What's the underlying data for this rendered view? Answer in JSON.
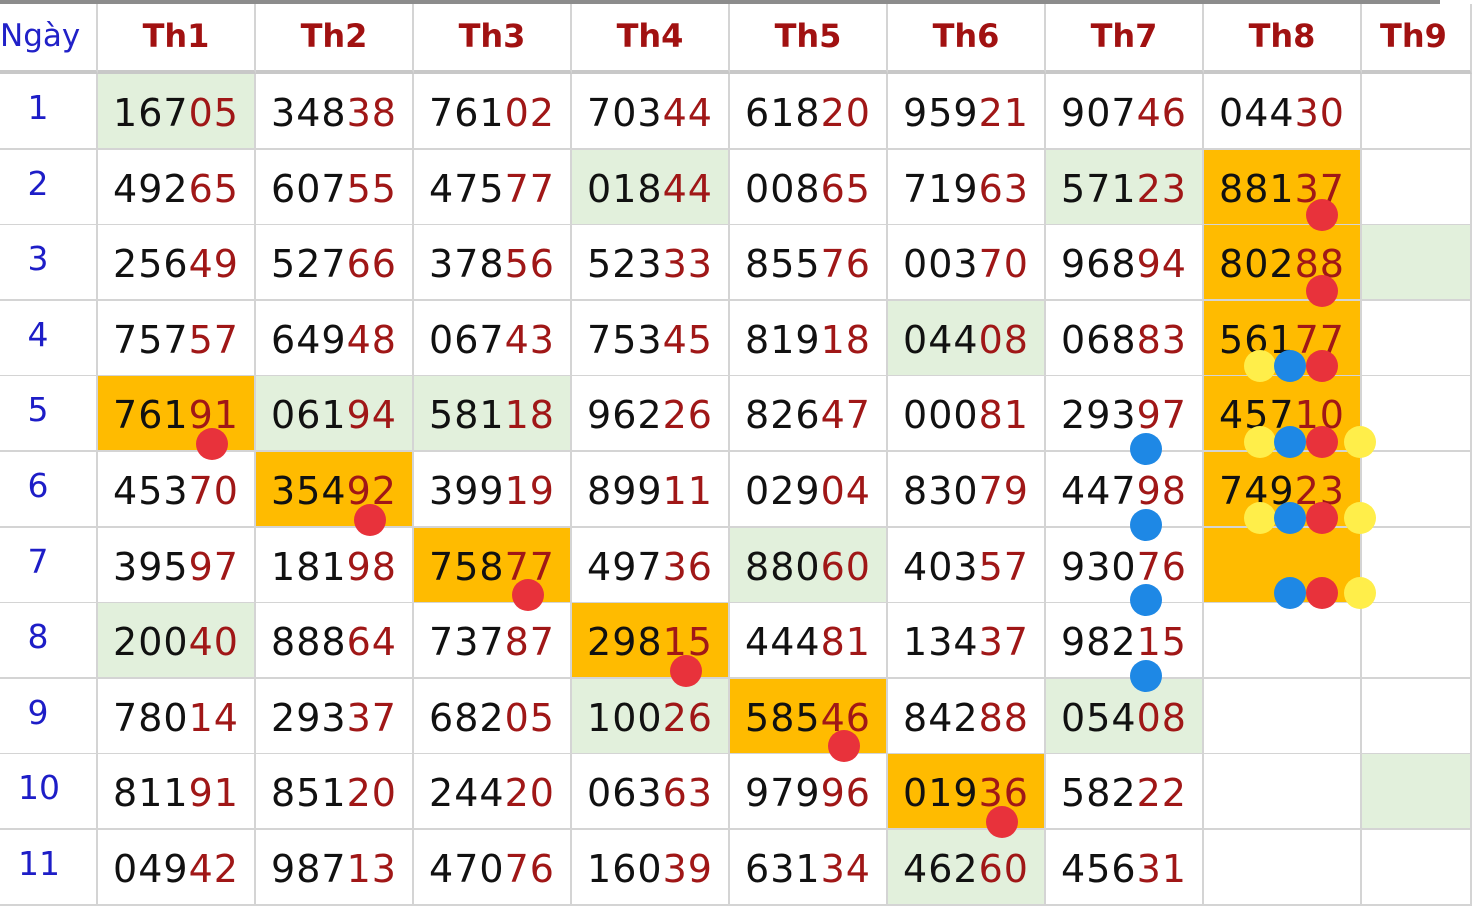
{
  "header": {
    "day_label": "Ngày",
    "months": [
      "Th1",
      "Th2",
      "Th3",
      "Th4",
      "Th5",
      "Th6",
      "Th7",
      "Th8",
      "Th9"
    ]
  },
  "rows": [
    {
      "day": "1",
      "cells": [
        {
          "prefix": "167",
          "suffix": "05",
          "bg": "green"
        },
        {
          "prefix": "348",
          "suffix": "38",
          "bg": "white"
        },
        {
          "prefix": "761",
          "suffix": "02",
          "bg": "white"
        },
        {
          "prefix": "703",
          "suffix": "44",
          "bg": "white"
        },
        {
          "prefix": "618",
          "suffix": "20",
          "bg": "white"
        },
        {
          "prefix": "959",
          "suffix": "21",
          "bg": "white"
        },
        {
          "prefix": "907",
          "suffix": "46",
          "bg": "white"
        },
        {
          "prefix": "044",
          "suffix": "30",
          "bg": "white"
        },
        {
          "prefix": "",
          "suffix": "",
          "bg": "white"
        }
      ]
    },
    {
      "day": "2",
      "cells": [
        {
          "prefix": "492",
          "suffix": "65",
          "bg": "white"
        },
        {
          "prefix": "607",
          "suffix": "55",
          "bg": "white"
        },
        {
          "prefix": "475",
          "suffix": "77",
          "bg": "white"
        },
        {
          "prefix": "018",
          "suffix": "44",
          "bg": "green"
        },
        {
          "prefix": "008",
          "suffix": "65",
          "bg": "white"
        },
        {
          "prefix": "719",
          "suffix": "63",
          "bg": "white"
        },
        {
          "prefix": "571",
          "suffix": "23",
          "bg": "green"
        },
        {
          "prefix": "881",
          "suffix": "37",
          "bg": "orange"
        },
        {
          "prefix": "",
          "suffix": "",
          "bg": "white"
        }
      ]
    },
    {
      "day": "3",
      "cells": [
        {
          "prefix": "256",
          "suffix": "49",
          "bg": "white"
        },
        {
          "prefix": "527",
          "suffix": "66",
          "bg": "white"
        },
        {
          "prefix": "378",
          "suffix": "56",
          "bg": "white"
        },
        {
          "prefix": "523",
          "suffix": "33",
          "bg": "white"
        },
        {
          "prefix": "855",
          "suffix": "76",
          "bg": "white"
        },
        {
          "prefix": "003",
          "suffix": "70",
          "bg": "white"
        },
        {
          "prefix": "968",
          "suffix": "94",
          "bg": "white"
        },
        {
          "prefix": "802",
          "suffix": "88",
          "bg": "orange"
        },
        {
          "prefix": "",
          "suffix": "",
          "bg": "green"
        }
      ]
    },
    {
      "day": "4",
      "cells": [
        {
          "prefix": "757",
          "suffix": "57",
          "bg": "white"
        },
        {
          "prefix": "649",
          "suffix": "48",
          "bg": "white"
        },
        {
          "prefix": "067",
          "suffix": "43",
          "bg": "white"
        },
        {
          "prefix": "753",
          "suffix": "45",
          "bg": "white"
        },
        {
          "prefix": "819",
          "suffix": "18",
          "bg": "white"
        },
        {
          "prefix": "044",
          "suffix": "08",
          "bg": "green"
        },
        {
          "prefix": "068",
          "suffix": "83",
          "bg": "white"
        },
        {
          "prefix": "561",
          "suffix": "77",
          "bg": "orange"
        },
        {
          "prefix": "",
          "suffix": "",
          "bg": "white"
        }
      ]
    },
    {
      "day": "5",
      "cells": [
        {
          "prefix": "761",
          "suffix": "91",
          "bg": "orange"
        },
        {
          "prefix": "061",
          "suffix": "94",
          "bg": "green"
        },
        {
          "prefix": "581",
          "suffix": "18",
          "bg": "green"
        },
        {
          "prefix": "962",
          "suffix": "26",
          "bg": "white"
        },
        {
          "prefix": "826",
          "suffix": "47",
          "bg": "white"
        },
        {
          "prefix": "000",
          "suffix": "81",
          "bg": "white"
        },
        {
          "prefix": "293",
          "suffix": "97",
          "bg": "white"
        },
        {
          "prefix": "457",
          "suffix": "10",
          "bg": "orange"
        },
        {
          "prefix": "",
          "suffix": "",
          "bg": "white"
        }
      ]
    },
    {
      "day": "6",
      "cells": [
        {
          "prefix": "453",
          "suffix": "70",
          "bg": "white"
        },
        {
          "prefix": "354",
          "suffix": "92",
          "bg": "orange"
        },
        {
          "prefix": "399",
          "suffix": "19",
          "bg": "white"
        },
        {
          "prefix": "899",
          "suffix": "11",
          "bg": "white"
        },
        {
          "prefix": "029",
          "suffix": "04",
          "bg": "white"
        },
        {
          "prefix": "830",
          "suffix": "79",
          "bg": "white"
        },
        {
          "prefix": "447",
          "suffix": "98",
          "bg": "white"
        },
        {
          "prefix": "749",
          "suffix": "23",
          "bg": "orange"
        },
        {
          "prefix": "",
          "suffix": "",
          "bg": "white"
        }
      ]
    },
    {
      "day": "7",
      "cells": [
        {
          "prefix": "395",
          "suffix": "97",
          "bg": "white"
        },
        {
          "prefix": "181",
          "suffix": "98",
          "bg": "white"
        },
        {
          "prefix": "758",
          "suffix": "77",
          "bg": "orange"
        },
        {
          "prefix": "497",
          "suffix": "36",
          "bg": "white"
        },
        {
          "prefix": "880",
          "suffix": "60",
          "bg": "green"
        },
        {
          "prefix": "403",
          "suffix": "57",
          "bg": "white"
        },
        {
          "prefix": "930",
          "suffix": "76",
          "bg": "white"
        },
        {
          "prefix": "",
          "suffix": "",
          "bg": "orange"
        },
        {
          "prefix": "",
          "suffix": "",
          "bg": "white"
        }
      ]
    },
    {
      "day": "8",
      "cells": [
        {
          "prefix": "200",
          "suffix": "40",
          "bg": "green"
        },
        {
          "prefix": "888",
          "suffix": "64",
          "bg": "white"
        },
        {
          "prefix": "737",
          "suffix": "87",
          "bg": "white"
        },
        {
          "prefix": "298",
          "suffix": "15",
          "bg": "orange"
        },
        {
          "prefix": "444",
          "suffix": "81",
          "bg": "white"
        },
        {
          "prefix": "134",
          "suffix": "37",
          "bg": "white"
        },
        {
          "prefix": "982",
          "suffix": "15",
          "bg": "white"
        },
        {
          "prefix": "",
          "suffix": "",
          "bg": "white"
        },
        {
          "prefix": "",
          "suffix": "",
          "bg": "white"
        }
      ]
    },
    {
      "day": "9",
      "cells": [
        {
          "prefix": "780",
          "suffix": "14",
          "bg": "white"
        },
        {
          "prefix": "293",
          "suffix": "37",
          "bg": "white"
        },
        {
          "prefix": "682",
          "suffix": "05",
          "bg": "white"
        },
        {
          "prefix": "100",
          "suffix": "26",
          "bg": "green"
        },
        {
          "prefix": "585",
          "suffix": "46",
          "bg": "orange"
        },
        {
          "prefix": "842",
          "suffix": "88",
          "bg": "white"
        },
        {
          "prefix": "054",
          "suffix": "08",
          "bg": "green"
        },
        {
          "prefix": "",
          "suffix": "",
          "bg": "white"
        },
        {
          "prefix": "",
          "suffix": "",
          "bg": "white"
        }
      ]
    },
    {
      "day": "10",
      "cells": [
        {
          "prefix": "811",
          "suffix": "91",
          "bg": "white"
        },
        {
          "prefix": "851",
          "suffix": "20",
          "bg": "white"
        },
        {
          "prefix": "244",
          "suffix": "20",
          "bg": "white"
        },
        {
          "prefix": "063",
          "suffix": "63",
          "bg": "white"
        },
        {
          "prefix": "979",
          "suffix": "96",
          "bg": "white"
        },
        {
          "prefix": "019",
          "suffix": "36",
          "bg": "orange"
        },
        {
          "prefix": "582",
          "suffix": "22",
          "bg": "white"
        },
        {
          "prefix": "",
          "suffix": "",
          "bg": "white"
        },
        {
          "prefix": "",
          "suffix": "",
          "bg": "green"
        }
      ]
    },
    {
      "day": "11",
      "cells": [
        {
          "prefix": "049",
          "suffix": "42",
          "bg": "white"
        },
        {
          "prefix": "987",
          "suffix": "13",
          "bg": "white"
        },
        {
          "prefix": "470",
          "suffix": "76",
          "bg": "white"
        },
        {
          "prefix": "160",
          "suffix": "39",
          "bg": "white"
        },
        {
          "prefix": "631",
          "suffix": "34",
          "bg": "white"
        },
        {
          "prefix": "462",
          "suffix": "60",
          "bg": "green"
        },
        {
          "prefix": "456",
          "suffix": "31",
          "bg": "white"
        },
        {
          "prefix": "",
          "suffix": "",
          "bg": "white"
        },
        {
          "prefix": "",
          "suffix": "",
          "bg": "white"
        }
      ]
    }
  ],
  "colors": {
    "highlight_orange": "#ffbb00",
    "highlight_green": "#e2f0dc",
    "prefix_text": "#111111",
    "suffix_text": "#a01717",
    "header_text": "#a11111",
    "day_text": "#1d1dc7",
    "marker_red": "#e8323b",
    "marker_blue": "#1e88e5",
    "marker_yellow": "#ffee4a"
  },
  "markers": [
    {
      "color": "red",
      "month": "Th1",
      "day": "5"
    },
    {
      "color": "red",
      "month": "Th2",
      "day": "6"
    },
    {
      "color": "red",
      "month": "Th3",
      "day": "7"
    },
    {
      "color": "red",
      "month": "Th4",
      "day": "8"
    },
    {
      "color": "red",
      "month": "Th5",
      "day": "9"
    },
    {
      "color": "red",
      "month": "Th6",
      "day": "10"
    },
    {
      "color": "blue",
      "month": "Th7",
      "day": "5"
    },
    {
      "color": "blue",
      "month": "Th7",
      "day": "6"
    },
    {
      "color": "blue",
      "month": "Th7",
      "day": "7"
    },
    {
      "color": "blue",
      "month": "Th7",
      "day": "8"
    },
    {
      "color": "red",
      "month": "Th8",
      "day": "2"
    },
    {
      "color": "red",
      "month": "Th8",
      "day": "3"
    },
    {
      "color": "yellow",
      "month": "Th8",
      "day": "4"
    },
    {
      "color": "blue",
      "month": "Th8",
      "day": "4"
    },
    {
      "color": "red",
      "month": "Th8",
      "day": "4"
    },
    {
      "color": "yellow",
      "month": "Th8",
      "day": "5"
    },
    {
      "color": "blue",
      "month": "Th8",
      "day": "5"
    },
    {
      "color": "red",
      "month": "Th8",
      "day": "5"
    },
    {
      "color": "yellow",
      "month": "Th8",
      "day": "5"
    },
    {
      "color": "yellow",
      "month": "Th8",
      "day": "6"
    },
    {
      "color": "blue",
      "month": "Th8",
      "day": "6"
    },
    {
      "color": "red",
      "month": "Th8",
      "day": "6"
    },
    {
      "color": "yellow",
      "month": "Th8",
      "day": "6"
    },
    {
      "color": "blue",
      "month": "Th8",
      "day": "7"
    },
    {
      "color": "red",
      "month": "Th8",
      "day": "7"
    },
    {
      "color": "yellow",
      "month": "Th8",
      "day": "7"
    }
  ]
}
